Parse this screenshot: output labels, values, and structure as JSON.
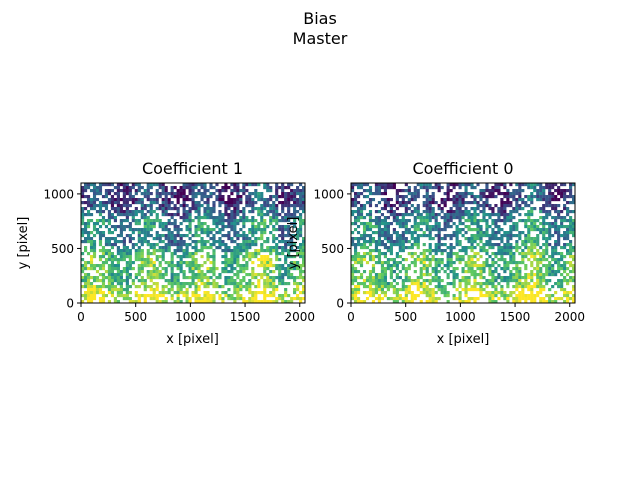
{
  "figure": {
    "suptitle_line1": "Bias",
    "suptitle_line2": "Master"
  },
  "chart_data": [
    {
      "type": "heatmap",
      "title": "Coefficient 1",
      "xlabel": "x [pixel]",
      "ylabel": "y [pixel]",
      "xlim": [
        0,
        2048
      ],
      "ylim": [
        0,
        1100
      ],
      "xticks": [
        0,
        500,
        1000,
        1500,
        2000
      ],
      "yticks": [
        0,
        500,
        1000
      ],
      "colormap": "viridis",
      "missing_color": "#ffffff",
      "grid": false,
      "legend": "none"
    },
    {
      "type": "heatmap",
      "title": "Coefficient 0",
      "xlabel": "x [pixel]",
      "ylabel": "y [pixel]",
      "xlim": [
        0,
        2048
      ],
      "ylim": [
        0,
        1100
      ],
      "xticks": [
        0,
        500,
        1000,
        1500,
        2000
      ],
      "yticks": [
        0,
        500,
        1000
      ],
      "colormap": "viridis",
      "missing_color": "#ffffff",
      "grid": false,
      "legend": "none"
    }
  ],
  "colors": {
    "viridis": [
      "#440154",
      "#3b528b",
      "#21918c",
      "#5ec962",
      "#fde725"
    ]
  }
}
